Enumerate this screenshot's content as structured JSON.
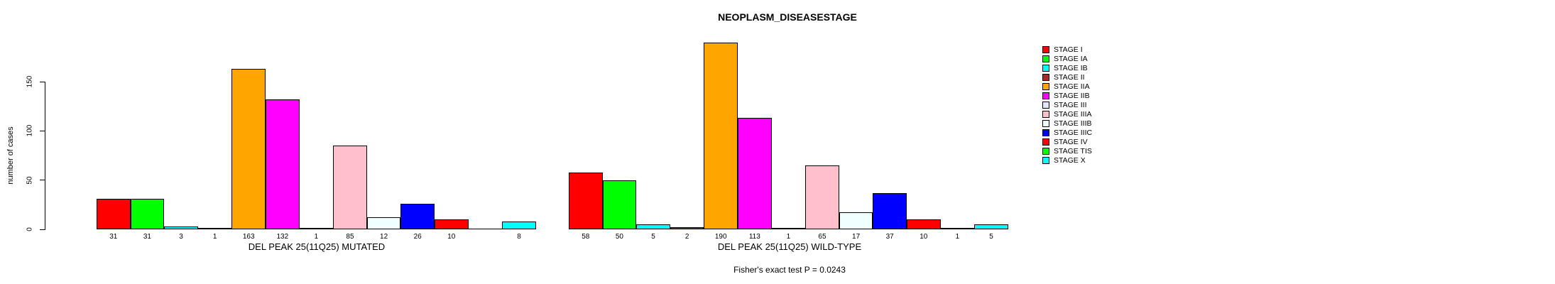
{
  "title": "NEOPLASM_DISEASESTAGE",
  "y_axis": {
    "label": "number of cases",
    "ticks": [
      0,
      50,
      100,
      150
    ]
  },
  "footer_note": "Fisher's exact test P = 0.0243",
  "chart_data": {
    "type": "bar",
    "title": "NEOPLASM_DISEASESTAGE",
    "ylabel": "number of cases",
    "y_ticks": [
      0,
      50,
      100,
      150
    ],
    "ylim": [
      0,
      195
    ],
    "grid": false,
    "legend_position": "right",
    "categories": [
      "STAGE I",
      "STAGE IA",
      "STAGE IB",
      "STAGE II",
      "STAGE IIA",
      "STAGE IIB",
      "STAGE III",
      "STAGE IIIA",
      "STAGE IIIB",
      "STAGE IIIC",
      "STAGE IV",
      "STAGE TIS",
      "STAGE X"
    ],
    "colors": [
      "#FF0000",
      "#00FF00",
      "#00FFFF",
      "#A52A2A",
      "#FFA500",
      "#FF00FF",
      "#E6E6FA",
      "#FFC0CB",
      "#F0FFFF",
      "#0000FF",
      "#FF0000",
      "#00FF00",
      "#00FFFF"
    ],
    "groups": [
      {
        "xlabel": "DEL PEAK 25(11Q25) MUTATED",
        "values": [
          31,
          31,
          3,
          1,
          163,
          132,
          1,
          85,
          12,
          26,
          10,
          null,
          8
        ]
      },
      {
        "xlabel": "DEL PEAK 25(11Q25) WILD-TYPE",
        "values": [
          58,
          50,
          5,
          2,
          190,
          113,
          1,
          65,
          17,
          37,
          10,
          1,
          5
        ]
      }
    ],
    "annotation": "Fisher's exact test P = 0.0243"
  }
}
